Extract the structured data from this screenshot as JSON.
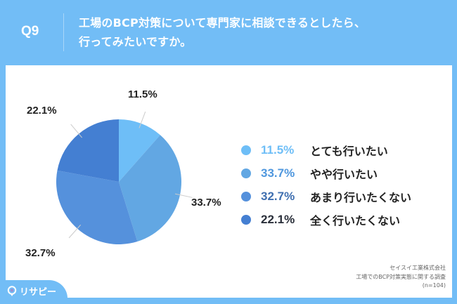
{
  "header": {
    "question_no": "Q9",
    "title_line1": "工場のBCP対策について専門家に相談できるとしたら、",
    "title_line2": "行ってみたいですか。"
  },
  "colors": {
    "background": "#72bdf6",
    "slice_1": "#6ebef7",
    "slice_2": "#62a7e3",
    "slice_3": "#5591dc",
    "slice_4": "#447fd2"
  },
  "chart_data": {
    "type": "pie",
    "title": "工場のBCP対策について専門家に相談できるとしたら、行ってみたいですか。",
    "categories": [
      "とても行いたい",
      "やや行いたい",
      "あまり行いたくない",
      "全く行いたくない"
    ],
    "values": [
      11.5,
      33.7,
      32.7,
      22.1
    ],
    "unit": "%",
    "start_angle": "12 o'clock, clockwise",
    "legend_position": "right",
    "n": 104
  },
  "pie_labels": [
    "11.5%",
    "33.7%",
    "32.7%",
    "22.1%"
  ],
  "legend": [
    {
      "pct": "11.5%",
      "label": "とても行いたい",
      "color": "#6ebef7",
      "pct_color": "#6ebef7"
    },
    {
      "pct": "33.7%",
      "label": "やや行いたい",
      "color": "#62a7e3",
      "pct_color": "#4f97de"
    },
    {
      "pct": "32.7%",
      "label": "あまり行いたくない",
      "color": "#5591dc",
      "pct_color": "#3f6fb0"
    },
    {
      "pct": "22.1%",
      "label": "全く行いたくない",
      "color": "#447fd2",
      "pct_color": "#2a2f3a"
    }
  ],
  "source": {
    "line1": "セイスイ工業株式会社",
    "line2": "工場でのBCP対策実態に関する調査",
    "line3": "(n=104)"
  },
  "logo": {
    "text": "リサピー"
  }
}
